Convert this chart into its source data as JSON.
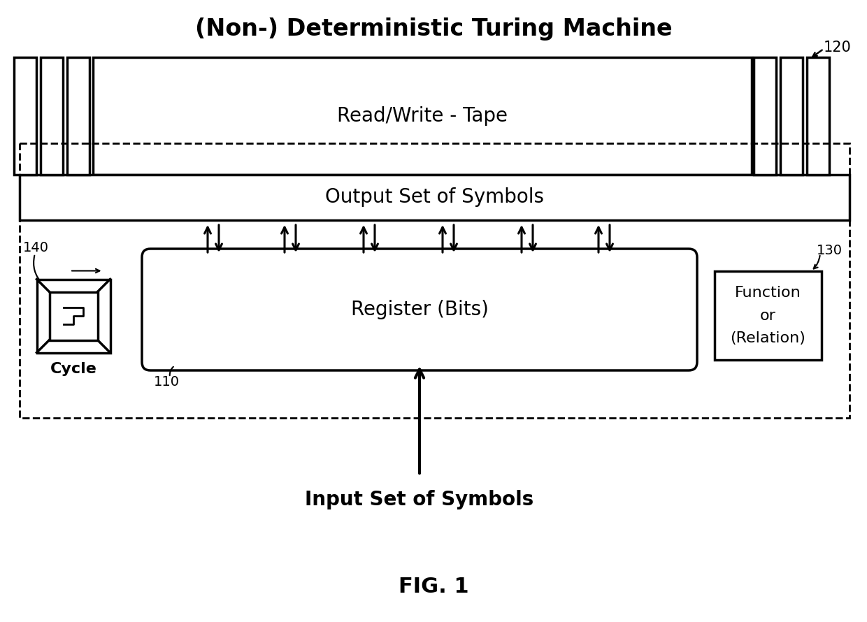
{
  "title": "(Non-) Deterministic Turing Machine",
  "fig_label": "FIG. 1",
  "tape_label": "Read/Write - Tape",
  "output_label": "Output Set of Symbols",
  "register_label": "Register (Bits)",
  "input_label": "Input Set of Symbols",
  "function_label": "Function\nor\n(Relation)",
  "cycle_label": "Cycle",
  "ref_120": "120",
  "ref_130": "130",
  "ref_140": "140",
  "ref_110": "110",
  "bg_color": "#ffffff",
  "ec": "#000000",
  "lw": 2.5,
  "lw_dash": 2.0,
  "arrow_lw": 2.2
}
